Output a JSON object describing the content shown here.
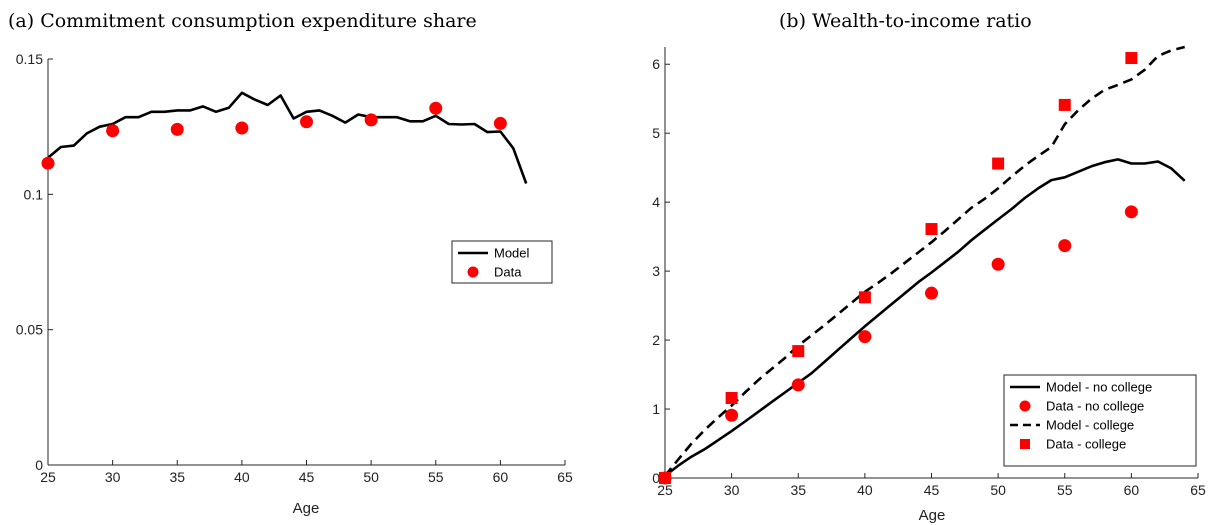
{
  "chart_data": [
    {
      "type": "line",
      "title": "(a) Commitment consumption expenditure share",
      "xlabel": "Age",
      "ylabel": "",
      "xlim": [
        25,
        65
      ],
      "ylim": [
        0,
        0.15
      ],
      "xticks": [
        25,
        30,
        35,
        40,
        45,
        50,
        55,
        60,
        65
      ],
      "yticks": [
        0,
        0.05,
        0.1,
        0.15
      ],
      "ytick_labels": [
        "0",
        "0.05",
        "0.1",
        "0.15"
      ],
      "grid": false,
      "legend_placement": "center-right",
      "series": [
        {
          "name": "Model",
          "kind": "line",
          "style": "solid",
          "color": "#000000",
          "x": [
            25,
            26,
            27,
            28,
            29,
            30,
            31,
            32,
            33,
            34,
            35,
            36,
            37,
            38,
            39,
            40,
            41,
            42,
            43,
            44,
            45,
            46,
            47,
            48,
            49,
            50,
            51,
            52,
            53,
            54,
            55,
            56,
            57,
            58,
            59,
            60,
            61,
            62
          ],
          "y": [
            0.1135,
            0.1175,
            0.118,
            0.1225,
            0.125,
            0.126,
            0.1285,
            0.1285,
            0.1305,
            0.1305,
            0.131,
            0.131,
            0.1325,
            0.1305,
            0.132,
            0.1375,
            0.135,
            0.133,
            0.1365,
            0.128,
            0.1305,
            0.131,
            0.129,
            0.1265,
            0.1295,
            0.1285,
            0.1285,
            0.1285,
            0.127,
            0.127,
            0.129,
            0.126,
            0.1258,
            0.126,
            0.123,
            0.1232,
            0.117,
            0.104
          ]
        },
        {
          "name": "Data",
          "kind": "marker",
          "marker": "circle",
          "color": "#ff0000",
          "x": [
            25,
            30,
            35,
            40,
            45,
            50,
            55,
            60
          ],
          "y": [
            0.1115,
            0.1235,
            0.124,
            0.1245,
            0.1268,
            0.1275,
            0.1318,
            0.1262
          ]
        }
      ]
    },
    {
      "type": "line",
      "title": "(b) Wealth-to-income ratio",
      "xlabel": "Age",
      "ylabel": "",
      "xlim": [
        25,
        65
      ],
      "ylim": [
        0,
        6.25
      ],
      "xticks": [
        25,
        30,
        35,
        40,
        45,
        50,
        55,
        60,
        65
      ],
      "yticks": [
        0,
        1,
        2,
        3,
        4,
        5,
        6
      ],
      "ytick_labels": [
        "0",
        "1",
        "2",
        "3",
        "4",
        "5",
        "6"
      ],
      "grid": false,
      "legend_placement": "bottom-right",
      "series": [
        {
          "name": "Model - no college",
          "kind": "line",
          "style": "solid",
          "color": "#000000",
          "x": [
            25,
            26,
            27,
            28,
            29,
            30,
            31,
            32,
            33,
            34,
            35,
            36,
            37,
            38,
            39,
            40,
            41,
            42,
            43,
            44,
            45,
            46,
            47,
            48,
            49,
            50,
            51,
            52,
            53,
            54,
            55,
            56,
            57,
            58,
            59,
            60,
            61,
            62,
            63,
            64
          ],
          "y": [
            0.03,
            0.18,
            0.31,
            0.42,
            0.55,
            0.68,
            0.82,
            0.96,
            1.1,
            1.24,
            1.38,
            1.52,
            1.69,
            1.86,
            2.03,
            2.2,
            2.36,
            2.52,
            2.68,
            2.84,
            2.98,
            3.13,
            3.28,
            3.45,
            3.6,
            3.75,
            3.9,
            4.06,
            4.2,
            4.32,
            4.36,
            4.44,
            4.52,
            4.58,
            4.62,
            4.56,
            4.56,
            4.59,
            4.49,
            4.31
          ]
        },
        {
          "name": "Data - no college",
          "kind": "marker",
          "marker": "circle",
          "color": "#ff0000",
          "x": [
            25,
            30,
            35,
            40,
            45,
            50,
            55,
            60
          ],
          "y": [
            0.0,
            0.91,
            1.35,
            2.05,
            2.68,
            3.1,
            3.37,
            3.86
          ]
        },
        {
          "name": "Model - college",
          "kind": "line",
          "style": "dashed",
          "color": "#000000",
          "x": [
            25,
            26,
            27,
            28,
            29,
            30,
            31,
            32,
            33,
            34,
            35,
            36,
            37,
            38,
            39,
            40,
            41,
            42,
            43,
            44,
            45,
            46,
            47,
            48,
            49,
            50,
            51,
            52,
            53,
            54,
            55,
            56,
            57,
            58,
            59,
            60,
            61,
            62,
            63,
            64
          ],
          "y": [
            0.03,
            0.27,
            0.5,
            0.7,
            0.88,
            1.05,
            1.24,
            1.42,
            1.58,
            1.74,
            1.92,
            2.07,
            2.22,
            2.38,
            2.54,
            2.7,
            2.83,
            2.97,
            3.12,
            3.27,
            3.42,
            3.58,
            3.75,
            3.92,
            4.05,
            4.2,
            4.37,
            4.53,
            4.67,
            4.8,
            5.13,
            5.33,
            5.5,
            5.63,
            5.7,
            5.78,
            5.92,
            6.12,
            6.2,
            6.25
          ]
        },
        {
          "name": "Data - college",
          "kind": "marker",
          "marker": "square",
          "color": "#ff0000",
          "x": [
            25,
            30,
            35,
            40,
            45,
            50,
            55,
            60
          ],
          "y": [
            0.0,
            1.16,
            1.84,
            2.62,
            3.61,
            4.56,
            5.41,
            6.09
          ]
        }
      ]
    }
  ]
}
